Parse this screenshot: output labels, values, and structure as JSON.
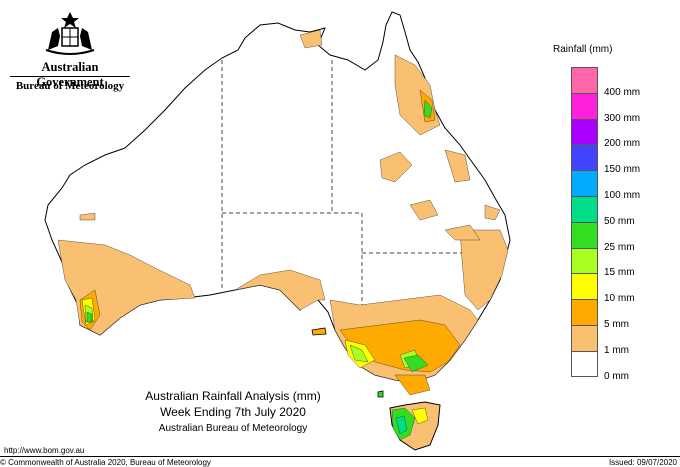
{
  "header": {
    "government": "Australian Government",
    "bureau": "Bureau of Meteorology"
  },
  "legend": {
    "title": "Rainfall (mm)",
    "items": [
      {
        "label": "",
        "color": "#ff66aa"
      },
      {
        "label": "400 mm",
        "color": "#ff22dd"
      },
      {
        "label": "300 mm",
        "color": "#aa00ff"
      },
      {
        "label": "200 mm",
        "color": "#4444ff"
      },
      {
        "label": "150 mm",
        "color": "#00aaff"
      },
      {
        "label": "100 mm",
        "color": "#00dd88"
      },
      {
        "label": "50 mm",
        "color": "#33dd22"
      },
      {
        "label": "25 mm",
        "color": "#aaff22"
      },
      {
        "label": "15 mm",
        "color": "#ffff00"
      },
      {
        "label": "10 mm",
        "color": "#ffaa00"
      },
      {
        "label": "5 mm",
        "color": "#f8c070"
      },
      {
        "label": "1 mm",
        "color": "#ffffff"
      },
      {
        "label": "0 mm",
        "color": ""
      }
    ]
  },
  "title": {
    "line1": "Australian Rainfall Analysis (mm)",
    "line2": "Week Ending 7th July 2020",
    "line3": "Australian Bureau of Meteorology"
  },
  "footer": {
    "url": "http://www.bom.gov.au",
    "copyright": "© Commonwealth of Australia 2020, Bureau of Meteorology",
    "issued": "Issued: 09/07/2020"
  }
}
